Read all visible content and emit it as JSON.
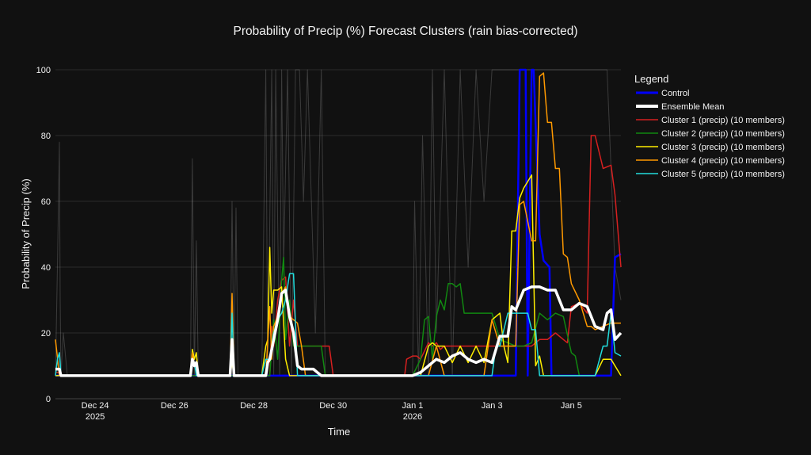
{
  "colors": {
    "background": "#111111",
    "plot_background": "#111111",
    "text": "#f2f2f2",
    "axis": "#444444",
    "members": "rgba(210,210,210,0.22)",
    "control": "#0000ff",
    "mean": "#ffffff",
    "cluster1": "#d62020",
    "cluster2": "#118811",
    "cluster3": "#ffee00",
    "cluster4": "#ff9900",
    "cluster5": "#22dddd"
  },
  "chart_data": {
    "type": "line",
    "title": "Probability of Precip (%) Forecast Clusters (rain bias-corrected)",
    "xlabel": "Time",
    "ylabel": "Probability of Precip (%)",
    "x_unit": "days since Dec 23 2025 00:00",
    "xlim": [
      0,
      14.25
    ],
    "ylim": [
      0,
      100
    ],
    "y_ticks": [
      0,
      20,
      40,
      60,
      80,
      100
    ],
    "x_ticks": [
      {
        "x": 1.0,
        "label": "Dec 24",
        "sub": "2025"
      },
      {
        "x": 3.0,
        "label": "Dec 26",
        "sub": ""
      },
      {
        "x": 5.0,
        "label": "Dec 28",
        "sub": ""
      },
      {
        "x": 7.0,
        "label": "Dec 30",
        "sub": ""
      },
      {
        "x": 9.0,
        "label": "Jan 1",
        "sub": "2026"
      },
      {
        "x": 11.0,
        "label": "Jan 3",
        "sub": ""
      },
      {
        "x": 13.0,
        "label": "Jan 5",
        "sub": ""
      }
    ],
    "legend": {
      "title": "Legend",
      "position": "right",
      "entries": [
        {
          "name": "Control",
          "color": "#0000ff",
          "width": 3
        },
        {
          "name": "Ensemble Mean",
          "color": "#ffffff",
          "width": 4
        },
        {
          "name": "Cluster 1 (precip) (10 members)",
          "color": "#d62020",
          "width": 1.5
        },
        {
          "name": "Cluster 2 (precip) (10 members)",
          "color": "#118811",
          "width": 1.5
        },
        {
          "name": "Cluster 3 (precip) (10 members)",
          "color": "#ffee00",
          "width": 1.5
        },
        {
          "name": "Cluster 4 (precip) (10 members)",
          "color": "#ff9900",
          "width": 1.5
        },
        {
          "name": "Cluster 5 (precip) (10 members)",
          "color": "#22dddd",
          "width": 1.5
        }
      ]
    },
    "series": [
      {
        "name": "Member spikes",
        "role": "members",
        "x": [
          0,
          0.05,
          0.1,
          0.12,
          0.14,
          0.2,
          0.3,
          3.4,
          3.45,
          3.5,
          3.55,
          3.6,
          3.65,
          4.4,
          4.45,
          4.5,
          4.55,
          4.6,
          5.2,
          5.3,
          5.35,
          5.45,
          5.5,
          5.55,
          5.65,
          5.7,
          5.75,
          5.85,
          5.95,
          6.05,
          6.15,
          6.25,
          6.35,
          6.55,
          6.7,
          6.8,
          9.0,
          9.05,
          9.15,
          9.25,
          9.4,
          9.5,
          9.6,
          9.8,
          10.0,
          10.2,
          10.4,
          10.6,
          10.8,
          11.0,
          11.2,
          11.4,
          11.6,
          11.7,
          11.9,
          12.1,
          12.3,
          12.5,
          12.7,
          12.9,
          13.1,
          13.3,
          13.5,
          13.7,
          13.9,
          14.1,
          14.25
        ],
        "values": [
          7,
          40,
          78,
          30,
          7,
          20,
          7,
          7,
          73,
          7,
          48,
          7,
          7,
          7,
          60,
          7,
          58,
          7,
          7,
          100,
          7,
          100,
          7,
          100,
          7,
          100,
          40,
          100,
          7,
          100,
          100,
          60,
          100,
          20,
          100,
          7,
          7,
          60,
          7,
          80,
          7,
          100,
          20,
          100,
          7,
          100,
          40,
          100,
          60,
          100,
          100,
          100,
          100,
          100,
          100,
          100,
          100,
          100,
          100,
          100,
          100,
          100,
          100,
          100,
          100,
          40,
          30
        ]
      },
      {
        "name": "Control",
        "role": "control",
        "x": [
          0,
          0.1,
          0.14,
          6.8,
          8.8,
          9.0,
          10.8,
          11.15,
          11.3,
          11.6,
          11.7,
          11.85,
          11.9,
          12.0,
          12.05,
          12.2,
          12.3,
          12.45,
          12.5,
          14.0,
          14.1,
          14.25
        ],
        "values": [
          7,
          7,
          7,
          7,
          7,
          7,
          7,
          7,
          7,
          7,
          100,
          100,
          7,
          100,
          100,
          50,
          42,
          40,
          7,
          7,
          43,
          44
        ]
      },
      {
        "name": "Cluster 1 (precip) (10 members)",
        "role": "cluster1",
        "x": [
          0,
          0.1,
          0.14,
          5.4,
          5.45,
          5.5,
          5.6,
          5.7,
          5.8,
          5.9,
          6.0,
          6.1,
          6.2,
          6.3,
          6.4,
          6.5,
          6.6,
          6.7,
          6.8,
          6.9,
          7.0,
          7.2,
          8.8,
          8.85,
          9.0,
          9.1,
          9.2,
          9.4,
          9.5,
          9.6,
          9.7,
          9.8,
          9.9,
          10.0,
          10.2,
          10.4,
          10.6,
          10.8,
          11.0,
          11.2,
          11.4,
          11.6,
          11.7,
          11.8,
          12.0,
          12.1,
          12.2,
          12.4,
          12.6,
          12.8,
          12.9,
          13.0,
          13.2,
          13.4,
          13.5,
          13.6,
          13.8,
          14.0,
          14.1,
          14.25
        ],
        "values": [
          8,
          8,
          7,
          7,
          22,
          16,
          30,
          36,
          37,
          16,
          30,
          16,
          16,
          16,
          16,
          16,
          16,
          16,
          16,
          16,
          7,
          7,
          7,
          12,
          13,
          13,
          12,
          17,
          16,
          17,
          15,
          16,
          16,
          16,
          16,
          16,
          16,
          16,
          16,
          16,
          16,
          16,
          16,
          16,
          16,
          17,
          18,
          18,
          20,
          18,
          17,
          28,
          29,
          26,
          80,
          80,
          70,
          71,
          62,
          40
        ]
      },
      {
        "name": "Cluster 2 (precip) (10 members)",
        "role": "cluster2",
        "x": [
          0,
          0.1,
          0.14,
          5.4,
          5.5,
          5.6,
          5.7,
          5.75,
          5.8,
          5.9,
          6.0,
          6.1,
          6.2,
          6.3,
          6.4,
          6.5,
          6.6,
          6.7,
          6.8,
          7.0,
          8.8,
          9.0,
          9.2,
          9.3,
          9.4,
          9.5,
          9.6,
          9.7,
          9.8,
          9.9,
          10.0,
          10.1,
          10.2,
          10.3,
          10.4,
          10.5,
          10.6,
          10.8,
          11.0,
          11.2,
          11.4,
          11.6,
          11.8,
          12.0,
          12.2,
          12.4,
          12.6,
          12.8,
          13.0,
          13.1,
          13.2
        ],
        "values": [
          7,
          7,
          7,
          7,
          24,
          12,
          36,
          43,
          18,
          30,
          16,
          16,
          16,
          16,
          16,
          16,
          16,
          16,
          7,
          7,
          7,
          7,
          12,
          24,
          25,
          12,
          25,
          30,
          27,
          35,
          35,
          34,
          35,
          26,
          26,
          26,
          26,
          26,
          26,
          18,
          17,
          16,
          16,
          17,
          26,
          24,
          26,
          25,
          14,
          13,
          7
        ]
      },
      {
        "name": "Cluster 3 (precip) (10 members)",
        "role": "cluster3",
        "x": [
          0,
          0.1,
          0.14,
          3.4,
          3.45,
          3.5,
          3.55,
          3.6,
          3.65,
          3.7,
          4.4,
          4.45,
          4.5,
          4.55,
          4.6,
          5.2,
          5.3,
          5.35,
          5.4,
          5.45,
          5.5,
          5.6,
          5.7,
          5.8,
          5.9,
          6.0,
          6.1,
          6.2,
          6.3,
          6.4,
          6.5,
          6.6,
          6.7,
          6.8,
          9.2,
          9.4,
          9.5,
          9.6,
          9.8,
          10.0,
          10.2,
          10.4,
          10.6,
          10.8,
          11.0,
          11.2,
          11.3,
          11.4,
          11.5,
          11.6,
          11.7,
          11.8,
          11.9,
          12.0,
          12.1,
          12.2,
          12.3,
          12.4,
          12.5,
          12.6,
          12.8,
          13.0,
          13.2,
          13.4,
          13.6,
          13.8,
          14.0,
          14.25
        ],
        "values": [
          7,
          7,
          7,
          7,
          15,
          12,
          14,
          7,
          7,
          7,
          7,
          11,
          7,
          7,
          7,
          7,
          16,
          18,
          46,
          26,
          33,
          33,
          34,
          12,
          7,
          7,
          7,
          7,
          7,
          7,
          7,
          7,
          7,
          7,
          7,
          16,
          17,
          16,
          16,
          11,
          16,
          11,
          16,
          11,
          24,
          26,
          16,
          11,
          51,
          51,
          61,
          64,
          66,
          68,
          10,
          13,
          7,
          7,
          7,
          7,
          7,
          7,
          7,
          7,
          7,
          12,
          12,
          7
        ]
      },
      {
        "name": "Cluster 4 (precip) (10 members)",
        "role": "cluster4",
        "x": [
          0,
          0.1,
          0.14,
          3.4,
          3.45,
          3.5,
          3.55,
          3.6,
          3.7,
          4.4,
          4.45,
          4.5,
          4.55,
          4.6,
          5.2,
          5.3,
          5.4,
          5.45,
          5.5,
          5.6,
          5.7,
          5.8,
          5.9,
          6.0,
          6.1,
          6.2,
          6.3,
          6.4,
          6.5,
          6.6,
          6.7,
          6.8,
          9.2,
          9.4,
          9.6,
          9.8,
          10.0,
          10.2,
          10.4,
          10.6,
          10.8,
          11.0,
          11.2,
          11.4,
          11.6,
          11.7,
          11.8,
          12.0,
          12.1,
          12.2,
          12.3,
          12.4,
          12.5,
          12.6,
          12.7,
          12.8,
          12.9,
          13.0,
          13.2,
          13.4,
          13.5,
          13.6,
          13.8,
          14.0,
          14.1,
          14.25
        ],
        "values": [
          18,
          7,
          7,
          7,
          14,
          10,
          11,
          7,
          7,
          7,
          32,
          7,
          7,
          7,
          7,
          7,
          28,
          12,
          22,
          25,
          32,
          34,
          25,
          24,
          23,
          16,
          7,
          7,
          7,
          7,
          7,
          7,
          7,
          7,
          16,
          7,
          7,
          7,
          7,
          7,
          7,
          24,
          16,
          16,
          16,
          59,
          60,
          48,
          48,
          98,
          99,
          84,
          84,
          70,
          70,
          44,
          43,
          35,
          30,
          22,
          22,
          21,
          22,
          23,
          23,
          23
        ]
      },
      {
        "name": "Cluster 5 (precip) (10 members)",
        "role": "cluster5",
        "x": [
          0,
          0.05,
          0.1,
          0.14,
          3.4,
          3.45,
          3.5,
          3.55,
          3.6,
          3.7,
          4.4,
          4.45,
          4.5,
          4.55,
          4.6,
          5.2,
          5.3,
          5.4,
          5.5,
          5.6,
          5.7,
          5.8,
          5.9,
          6.0,
          6.1,
          6.2,
          6.3,
          6.4,
          6.5,
          6.6,
          6.7,
          6.8,
          9.0,
          9.2,
          9.4,
          9.6,
          9.8,
          10.0,
          10.2,
          10.4,
          10.6,
          10.8,
          11.0,
          11.1,
          11.2,
          11.4,
          11.6,
          11.8,
          11.9,
          12.0,
          12.1,
          12.2,
          12.4,
          12.6,
          12.8,
          12.9,
          13.0,
          13.2,
          13.3,
          13.4,
          13.6,
          13.8,
          13.9,
          14.0,
          14.1,
          14.25
        ],
        "values": [
          7,
          12,
          14,
          7,
          7,
          12,
          11,
          7,
          7,
          7,
          7,
          26,
          7,
          7,
          7,
          7,
          12,
          12,
          20,
          24,
          26,
          30,
          38,
          38,
          7,
          7,
          7,
          7,
          7,
          7,
          7,
          7,
          7,
          7,
          7,
          7,
          7,
          7,
          7,
          7,
          7,
          7,
          7,
          16,
          16,
          26,
          26,
          26,
          26,
          21,
          21,
          7,
          7,
          7,
          7,
          7,
          7,
          7,
          7,
          7,
          7,
          16,
          16,
          26,
          14,
          13
        ]
      },
      {
        "name": "Ensemble Mean",
        "role": "mean",
        "x": [
          0,
          0.1,
          0.14,
          3.4,
          3.45,
          3.5,
          3.55,
          3.6,
          3.7,
          4.4,
          4.45,
          4.5,
          4.55,
          4.6,
          5.2,
          5.3,
          5.35,
          5.4,
          5.5,
          5.6,
          5.7,
          5.8,
          5.9,
          6.0,
          6.1,
          6.2,
          6.3,
          6.4,
          6.5,
          6.6,
          6.7,
          6.8,
          9.0,
          9.2,
          9.4,
          9.6,
          9.8,
          10.0,
          10.2,
          10.4,
          10.6,
          10.8,
          11.0,
          11.2,
          11.4,
          11.5,
          11.6,
          11.7,
          11.8,
          12.0,
          12.2,
          12.4,
          12.6,
          12.8,
          13.0,
          13.2,
          13.4,
          13.6,
          13.8,
          13.9,
          14.0,
          14.1,
          14.25
        ],
        "values": [
          9,
          9,
          7,
          7,
          12,
          10,
          11,
          7,
          7,
          7,
          18,
          7,
          7,
          7,
          7,
          7,
          11,
          12,
          18,
          24,
          32,
          33,
          25,
          20,
          10,
          9,
          9,
          9,
          9,
          8,
          7,
          7,
          7,
          8,
          10,
          12,
          11,
          13,
          14,
          12,
          11,
          12,
          11,
          19,
          19,
          28,
          27,
          30,
          33,
          34,
          34,
          33,
          33,
          27,
          27,
          29,
          28,
          22,
          21,
          26,
          27,
          18,
          20
        ]
      }
    ]
  }
}
